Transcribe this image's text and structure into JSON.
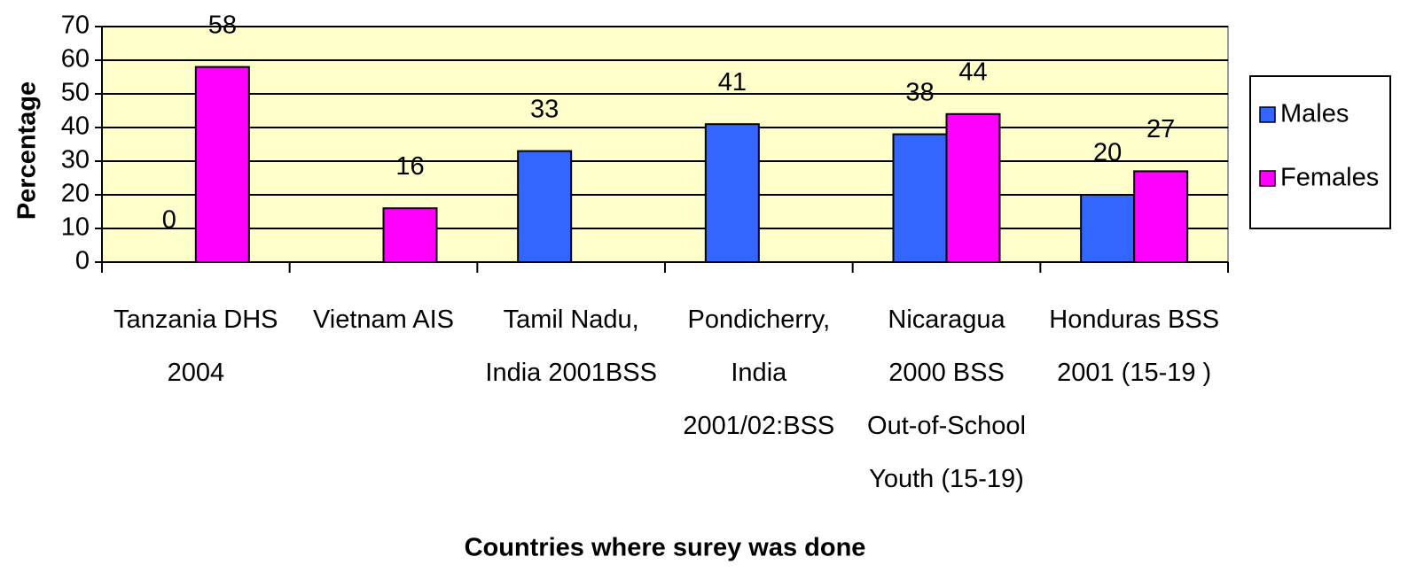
{
  "chart_data": {
    "type": "bar",
    "x_label": "Countries where surey was done",
    "y_label": "Percentage",
    "categories": [
      "Tanzania DHS\n2004",
      "Vietnam AIS",
      "Tamil Nadu,\nIndia 2001BSS",
      "Pondicherry,\nIndia\n2001/02:BSS",
      "Nicaragua\n2000 BSS\nOut-of-School\nYouth (15-19)",
      "Honduras BSS\n2001 (15-19 )"
    ],
    "series": [
      {
        "name": "Males",
        "color": "#3366ff",
        "values": [
          0,
          null,
          33,
          41,
          38,
          20
        ]
      },
      {
        "name": "Females",
        "color": "#ff00ff",
        "values": [
          58,
          16,
          null,
          null,
          44,
          27
        ]
      }
    ],
    "ylim": [
      0,
      70
    ],
    "yticks": [
      0,
      10,
      20,
      30,
      40,
      50,
      60,
      70
    ],
    "grid": true,
    "legend": "right",
    "plot_background": "#ffffcc"
  }
}
